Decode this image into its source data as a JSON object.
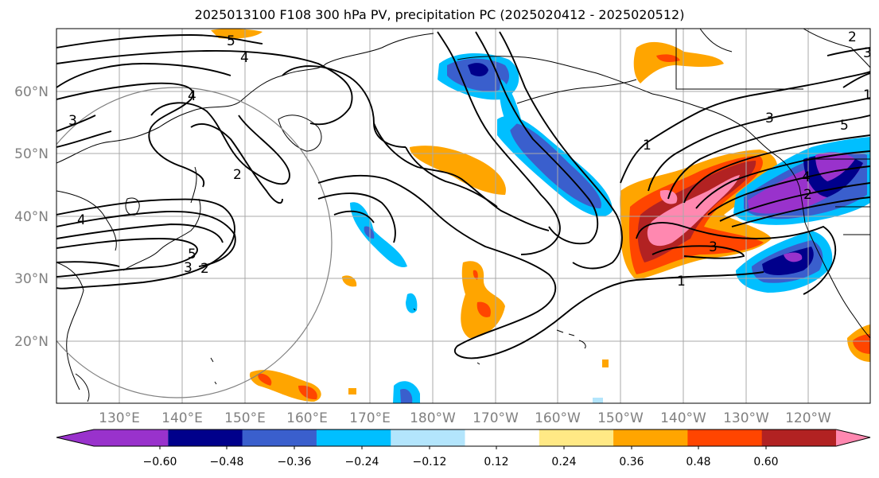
{
  "title": "2025013100 F108 300 hPa PV, precipitation PC (2025020412 - 2025020512)",
  "lat_labels": [
    "60°N",
    "50°N",
    "40°N",
    "30°N",
    "20°N"
  ],
  "lon_labels": [
    "130°E",
    "140°E",
    "150°E",
    "160°E",
    "170°E",
    "180°W",
    "170°W",
    "160°W",
    "150°W",
    "140°W",
    "130°W",
    "120°W"
  ],
  "contour_labels": [
    "5",
    "4",
    "4",
    "3",
    "2",
    "2",
    "4",
    "3",
    "5",
    "1",
    "3",
    "3",
    "1",
    "1",
    "4",
    "2",
    "3",
    "2",
    "5"
  ],
  "colorbar": {
    "colors": [
      "#9932cc",
      "#00008b",
      "#3a5fcd",
      "#00bfff",
      "#b3e5fc",
      "#ffffff",
      "#ffe985",
      "#ffa500",
      "#ff4500",
      "#b22222",
      "#ff88b0"
    ],
    "tick_labels": [
      "−0.60",
      "−0.48",
      "−0.36",
      "−0.24",
      "−0.12",
      "0.12",
      "0.24",
      "0.36",
      "0.48",
      "0.60"
    ]
  },
  "colors": {
    "grid": "#a9a9a9",
    "axis_label": "#808080",
    "contour": "#000000"
  }
}
